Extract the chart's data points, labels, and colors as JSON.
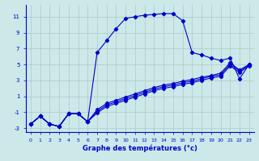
{
  "title": "Graphe des températures (°c)",
  "background_color": "#cce8e8",
  "grid_color": "#b0c8c8",
  "line_color": "#0000cc",
  "xlim": [
    -0.5,
    23.5
  ],
  "ylim": [
    -3.5,
    12.5
  ],
  "xticks": [
    0,
    1,
    2,
    3,
    4,
    5,
    6,
    7,
    8,
    9,
    10,
    11,
    12,
    13,
    14,
    15,
    16,
    17,
    18,
    19,
    20,
    21,
    22,
    23
  ],
  "yticks": [
    -3,
    -1,
    1,
    3,
    5,
    7,
    9,
    11
  ],
  "curve_main_x": [
    0,
    1,
    2,
    3,
    4,
    5,
    6,
    7,
    8,
    9,
    10,
    11,
    12,
    13,
    14,
    15,
    16,
    17,
    18,
    19,
    20,
    21,
    22,
    23
  ],
  "curve_main_y": [
    -2.5,
    -1.5,
    -2.5,
    -2.8,
    -1.2,
    -1.2,
    -2.2,
    6.5,
    8.0,
    9.5,
    10.8,
    11.0,
    11.2,
    11.3,
    11.4,
    11.4,
    10.5,
    6.5,
    6.2,
    5.8,
    5.5,
    5.8,
    3.2,
    5.0
  ],
  "curve2_x": [
    0,
    1,
    2,
    3,
    4,
    5,
    6,
    7,
    8,
    9,
    10,
    11,
    12,
    13,
    14,
    15,
    16,
    17,
    18,
    19,
    20,
    21,
    22,
    23
  ],
  "curve2_y": [
    -2.5,
    -1.5,
    -2.5,
    -2.8,
    -1.2,
    -1.2,
    -2.2,
    -0.7,
    0.1,
    0.5,
    0.9,
    1.3,
    1.7,
    2.1,
    2.4,
    2.6,
    2.9,
    3.1,
    3.4,
    3.6,
    3.9,
    5.2,
    4.3,
    5.0
  ],
  "curve3_x": [
    0,
    1,
    2,
    3,
    4,
    5,
    6,
    7,
    8,
    9,
    10,
    11,
    12,
    13,
    14,
    15,
    16,
    17,
    18,
    19,
    20,
    21,
    22,
    23
  ],
  "curve3_y": [
    -2.5,
    -1.5,
    -2.5,
    -2.8,
    -1.2,
    -1.2,
    -2.2,
    -0.9,
    -0.1,
    0.3,
    0.7,
    1.1,
    1.5,
    1.9,
    2.2,
    2.4,
    2.7,
    2.9,
    3.2,
    3.5,
    3.7,
    5.0,
    4.2,
    4.9
  ],
  "curve4_x": [
    0,
    1,
    2,
    3,
    4,
    5,
    6,
    7,
    8,
    9,
    10,
    11,
    12,
    13,
    14,
    15,
    16,
    17,
    18,
    19,
    20,
    21,
    22,
    23
  ],
  "curve4_y": [
    -2.5,
    -1.5,
    -2.5,
    -2.8,
    -1.2,
    -1.2,
    -2.2,
    -1.1,
    -0.3,
    0.1,
    0.5,
    0.9,
    1.3,
    1.7,
    2.0,
    2.2,
    2.5,
    2.7,
    3.0,
    3.3,
    3.5,
    4.8,
    4.0,
    4.8
  ]
}
